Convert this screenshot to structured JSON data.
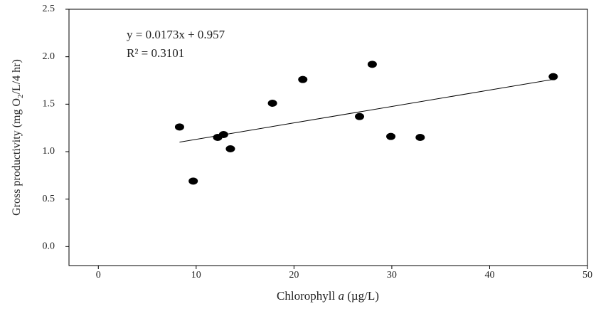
{
  "chart_data": {
    "type": "scatter",
    "x_label": [
      "Chlorophyll ",
      "a",
      " (µg/L)"
    ],
    "y_label": [
      "Gross productivity (mg O",
      "2",
      "/L/4 hr)"
    ],
    "annotations": [
      "y = 0.0173x + 0.957",
      "R² = 0.3101"
    ],
    "x": [
      8.3,
      9.7,
      12.2,
      12.8,
      13.5,
      17.8,
      20.9,
      26.7,
      28.0,
      29.9,
      32.9,
      46.5
    ],
    "y": [
      1.26,
      0.69,
      1.15,
      1.18,
      1.03,
      1.51,
      1.76,
      1.37,
      1.92,
      1.16,
      1.15,
      1.79
    ],
    "color": "#000000",
    "trendline": {
      "slope": 0.0173,
      "intercept": 0.957,
      "x_range": [
        8.3,
        46.5
      ]
    },
    "xlim": [
      -3,
      50
    ],
    "ylim": [
      -0.2,
      2.5
    ],
    "xticks": [
      0,
      10,
      20,
      30,
      40,
      50
    ],
    "yticks": [
      {
        "value": 0,
        "label": "0.0"
      },
      0.5,
      {
        "value": 1,
        "label": "1.0"
      },
      1.5,
      {
        "value": 2,
        "label": "2.0"
      },
      {
        "value": 2.5,
        "label": "2.5"
      }
    ]
  }
}
